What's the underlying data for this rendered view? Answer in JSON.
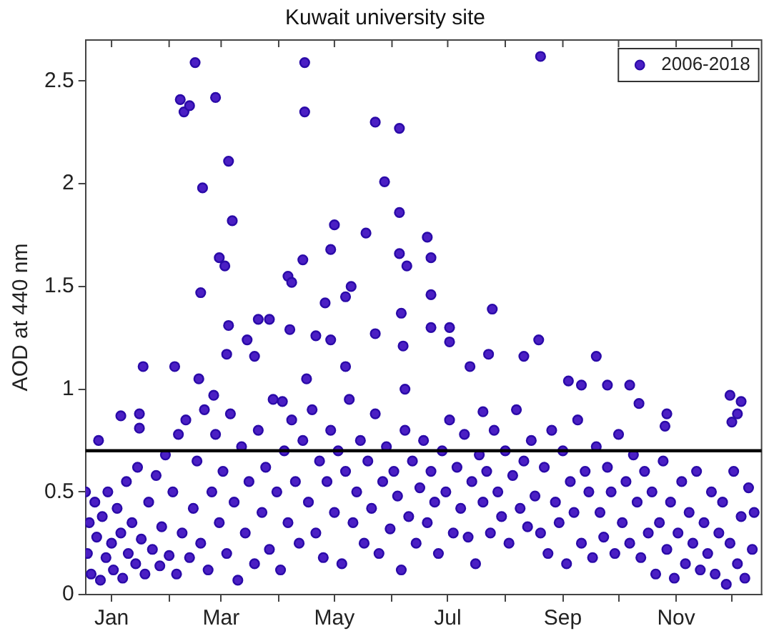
{
  "chart_data": {
    "type": "scatter",
    "title": "Kuwait university site",
    "ylabel": "AOD at 440 nm",
    "xlim": [
      "--01-01",
      "--12-31"
    ],
    "xticks": [
      {
        "value": "--01-15",
        "label": "Jan"
      },
      {
        "value": "--02-15",
        "label": null
      },
      {
        "value": "--03-15",
        "label": "Mar"
      },
      {
        "value": "--04-15",
        "label": null
      },
      {
        "value": "--05-15",
        "label": "May"
      },
      {
        "value": "--06-15",
        "label": null
      },
      {
        "value": "--07-15",
        "label": "Jul"
      },
      {
        "value": "--08-15",
        "label": null
      },
      {
        "value": "--09-15",
        "label": "Sep"
      },
      {
        "value": "--10-15",
        "label": null
      },
      {
        "value": "--11-15",
        "label": "Nov"
      },
      {
        "value": "--12-15",
        "label": null
      }
    ],
    "ylim": [
      0,
      2.7
    ],
    "yticks": [
      0,
      0.5,
      1,
      1.5,
      2,
      2.5
    ],
    "grid": false,
    "legend": "top right",
    "marker": "circle",
    "ref_lines": [
      {
        "axis": "y",
        "value": 0.7,
        "color": "#000000"
      }
    ],
    "series": [
      {
        "name": "2006-2018",
        "color": "#4b1fc4",
        "x": [
          "--03-01",
          "--04-29",
          "--02-21",
          "--02-23",
          "--02-26",
          "--03-12",
          "--04-29",
          "--06-06",
          "--06-19",
          "--03-19",
          "--03-05",
          "--06-11",
          "--03-21",
          "--05-15",
          "--06-01",
          "--05-13",
          "--06-19",
          "--03-14",
          "--03-17",
          "--04-28",
          "--06-19",
          "--04-20",
          "--04-22",
          "--03-04",
          "--05-24",
          "--05-21",
          "--05-10",
          "--09-03",
          "--07-04",
          "--07-06",
          "--06-23",
          "--07-06",
          "--08-08",
          "--02-01",
          "--02-18",
          "--01-20",
          "--01-30",
          "--01-30",
          "--01-08",
          "--03-19",
          "--03-18",
          "--03-29",
          "--04-04",
          "--04-10",
          "--04-02",
          "--04-21",
          "--05-05",
          "--05-13",
          "--03-03",
          "--03-11",
          "--06-20",
          "--07-06",
          "--07-16",
          "--07-16",
          "--08-06",
          "--07-27",
          "--06-06",
          "--09-02",
          "--08-25",
          "--10-03",
          "--09-18",
          "--09-25",
          "--10-09",
          "--10-21",
          "--10-26",
          "--11-10",
          "--11-09",
          "--12-14",
          "--12-20",
          "--12-18",
          "--12-15",
          "--08-03",
          "--06-21",
          "--06-22",
          "--05-21",
          "--04-30",
          "--04-17",
          "--01-01",
          "--01-02",
          "--01-03",
          "--01-04",
          "--01-06",
          "--01-07",
          "--01-09",
          "--01-10",
          "--01-12",
          "--01-13",
          "--01-15",
          "--01-16",
          "--01-18",
          "--01-20",
          "--01-21",
          "--01-23",
          "--01-24",
          "--01-26",
          "--01-28",
          "--01-29",
          "--01-31",
          "--02-02",
          "--02-04",
          "--02-06",
          "--02-08",
          "--02-10",
          "--02-11",
          "--02-13",
          "--02-15",
          "--02-17",
          "--02-19",
          "--02-20",
          "--02-22",
          "--02-24",
          "--02-26",
          "--02-28",
          "--03-02",
          "--03-04",
          "--03-06",
          "--03-08",
          "--03-10",
          "--03-12",
          "--03-14",
          "--03-16",
          "--03-18",
          "--03-20",
          "--03-22",
          "--03-24",
          "--03-26",
          "--03-28",
          "--03-30",
          "--04-02",
          "--04-04",
          "--04-06",
          "--04-08",
          "--04-10",
          "--04-12",
          "--04-14",
          "--04-16",
          "--04-18",
          "--04-20",
          "--04-22",
          "--04-24",
          "--04-26",
          "--04-28",
          "--05-01",
          "--05-03",
          "--05-05",
          "--05-07",
          "--05-09",
          "--05-11",
          "--05-13",
          "--05-15",
          "--05-17",
          "--05-19",
          "--05-21",
          "--05-23",
          "--05-25",
          "--05-27",
          "--05-29",
          "--05-31",
          "--06-02",
          "--06-04",
          "--06-06",
          "--06-08",
          "--06-10",
          "--06-12",
          "--06-14",
          "--06-16",
          "--06-18",
          "--06-20",
          "--06-22",
          "--06-24",
          "--06-26",
          "--06-28",
          "--06-30",
          "--07-02",
          "--07-04",
          "--07-06",
          "--07-08",
          "--07-10",
          "--07-12",
          "--07-14",
          "--07-16",
          "--07-18",
          "--07-20",
          "--07-22",
          "--07-24",
          "--07-26",
          "--07-28",
          "--07-30",
          "--08-01",
          "--08-03",
          "--08-05",
          "--08-07",
          "--08-09",
          "--08-11",
          "--08-13",
          "--08-15",
          "--08-17",
          "--08-19",
          "--08-21",
          "--08-23",
          "--08-25",
          "--08-27",
          "--08-29",
          "--08-31",
          "--09-03",
          "--09-05",
          "--09-07",
          "--09-09",
          "--09-11",
          "--09-13",
          "--09-15",
          "--09-17",
          "--09-19",
          "--09-21",
          "--09-23",
          "--09-25",
          "--09-27",
          "--09-29",
          "--10-01",
          "--10-03",
          "--10-05",
          "--10-07",
          "--10-09",
          "--10-11",
          "--10-13",
          "--10-15",
          "--10-17",
          "--10-19",
          "--10-21",
          "--10-23",
          "--10-25",
          "--10-27",
          "--10-29",
          "--10-31",
          "--11-02",
          "--11-04",
          "--11-06",
          "--11-08",
          "--11-10",
          "--11-12",
          "--11-14",
          "--11-16",
          "--11-18",
          "--11-20",
          "--11-22",
          "--11-24",
          "--11-26",
          "--11-28",
          "--11-30",
          "--12-02",
          "--12-04",
          "--12-06",
          "--12-08",
          "--12-10",
          "--12-12",
          "--12-14",
          "--12-16",
          "--12-18",
          "--12-20",
          "--12-22",
          "--12-24",
          "--12-26",
          "--12-27"
        ],
        "values": [
          2.59,
          2.59,
          2.41,
          2.35,
          2.38,
          2.42,
          2.35,
          2.3,
          2.27,
          2.11,
          1.98,
          2.01,
          1.82,
          1.8,
          1.76,
          1.68,
          1.86,
          1.64,
          1.6,
          1.63,
          1.66,
          1.55,
          1.52,
          1.47,
          1.5,
          1.45,
          1.42,
          2.62,
          1.74,
          1.64,
          1.6,
          1.46,
          1.39,
          1.11,
          1.11,
          0.87,
          0.88,
          0.81,
          0.75,
          1.31,
          1.17,
          1.24,
          1.34,
          1.34,
          1.16,
          1.29,
          1.26,
          1.24,
          1.05,
          0.97,
          1.37,
          1.3,
          1.3,
          1.23,
          1.17,
          1.11,
          1.27,
          1.24,
          1.16,
          1.16,
          1.04,
          1.02,
          1.02,
          1.02,
          0.93,
          0.88,
          0.82,
          0.97,
          0.94,
          0.88,
          0.84,
          0.89,
          1.21,
          1.0,
          1.11,
          1.05,
          0.94,
          0.5,
          0.2,
          0.35,
          0.1,
          0.45,
          0.28,
          0.07,
          0.38,
          0.18,
          0.5,
          0.25,
          0.12,
          0.42,
          0.3,
          0.08,
          0.55,
          0.2,
          0.35,
          0.15,
          0.62,
          0.27,
          0.1,
          0.45,
          0.22,
          0.58,
          0.14,
          0.33,
          0.68,
          0.19,
          0.5,
          0.1,
          0.78,
          0.3,
          0.85,
          0.18,
          0.42,
          0.65,
          0.25,
          0.9,
          0.12,
          0.5,
          0.78,
          0.35,
          0.6,
          0.2,
          0.88,
          0.45,
          0.07,
          0.72,
          0.3,
          0.55,
          0.15,
          0.8,
          0.4,
          0.62,
          0.22,
          0.95,
          0.5,
          0.12,
          0.7,
          0.35,
          0.85,
          0.55,
          0.25,
          0.75,
          0.45,
          0.9,
          0.3,
          0.65,
          0.18,
          0.55,
          0.8,
          0.4,
          0.7,
          0.15,
          0.6,
          0.95,
          0.35,
          0.5,
          0.75,
          0.25,
          0.65,
          0.42,
          0.88,
          0.2,
          0.55,
          0.72,
          0.32,
          0.6,
          0.48,
          0.12,
          0.8,
          0.38,
          0.65,
          0.25,
          0.52,
          0.75,
          0.35,
          0.6,
          0.45,
          0.2,
          0.7,
          0.5,
          0.85,
          0.3,
          0.62,
          0.42,
          0.78,
          0.28,
          0.55,
          0.15,
          0.68,
          0.45,
          0.6,
          0.3,
          0.8,
          0.5,
          0.38,
          0.7,
          0.25,
          0.58,
          0.9,
          0.42,
          0.65,
          0.33,
          0.75,
          0.48,
          0.3,
          0.62,
          0.2,
          0.8,
          0.45,
          0.35,
          0.7,
          0.15,
          0.55,
          0.4,
          0.85,
          0.25,
          0.6,
          0.5,
          0.18,
          0.72,
          0.4,
          0.28,
          0.62,
          0.5,
          0.2,
          0.78,
          0.35,
          0.55,
          0.25,
          0.68,
          0.45,
          0.18,
          0.6,
          0.3,
          0.5,
          0.1,
          0.35,
          0.65,
          0.22,
          0.45,
          0.08,
          0.3,
          0.55,
          0.15,
          0.4,
          0.25,
          0.6,
          0.12,
          0.35,
          0.2,
          0.5,
          0.1,
          0.3,
          0.45,
          0.05,
          0.25,
          0.6,
          0.15,
          0.38,
          0.08,
          0.52,
          0.22,
          0.4
        ]
      }
    ]
  }
}
